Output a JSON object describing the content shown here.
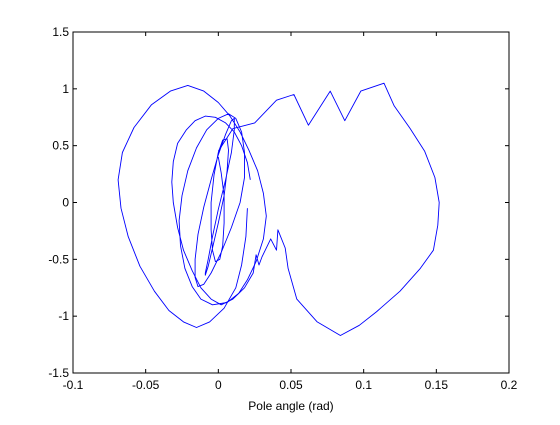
{
  "chart_data": {
    "type": "line",
    "title": "",
    "xlabel": "Pole angle (rad)",
    "ylabel": "",
    "xlim": [
      -0.1,
      0.2
    ],
    "ylim": [
      -1.5,
      1.5
    ],
    "grid": false,
    "legend": "none",
    "x_ticks": [
      -0.1,
      -0.05,
      0,
      0.05,
      0.1,
      0.15,
      0.2
    ],
    "x_tick_labels": [
      "-0.1",
      "-0.05",
      "0",
      "0.05",
      "0.1",
      "0.15",
      "0.2"
    ],
    "y_ticks": [
      -1.5,
      -1,
      -0.5,
      0,
      0.5,
      1,
      1.5
    ],
    "y_tick_labels": [
      "-1.5",
      "-1",
      "-0.5",
      "0",
      "0.5",
      "1",
      "1.5"
    ],
    "series_color": "#0000ff",
    "series": [
      {
        "name": "",
        "x": [
          0.0,
          0.005,
          0.01,
          0.025,
          0.04,
          0.052,
          0.062,
          0.077,
          0.087,
          0.098,
          0.114,
          0.121,
          0.132,
          0.142,
          0.149,
          0.152,
          0.151,
          0.148,
          0.139,
          0.125,
          0.109,
          0.097,
          0.084,
          0.068,
          0.054,
          0.048,
          0.046,
          0.041,
          0.04,
          0.036,
          0.03,
          0.028,
          0.026,
          0.024,
          0.018,
          0.01,
          0.002,
          -0.005,
          -0.012,
          -0.018,
          -0.024,
          -0.028,
          -0.031,
          -0.032,
          -0.031,
          -0.028,
          -0.022,
          -0.016,
          -0.009,
          -0.002,
          0.005,
          0.011,
          0.016,
          0.02,
          0.022
        ],
        "y": [
          0.45,
          0.55,
          0.65,
          0.7,
          0.9,
          0.95,
          0.68,
          0.98,
          0.72,
          0.98,
          1.05,
          0.85,
          0.65,
          0.45,
          0.22,
          0.0,
          -0.2,
          -0.42,
          -0.58,
          -0.78,
          -0.96,
          -1.08,
          -1.17,
          -1.05,
          -0.85,
          -0.58,
          -0.4,
          -0.24,
          -0.42,
          -0.32,
          -0.48,
          -0.55,
          -0.46,
          -0.62,
          -0.75,
          -0.85,
          -0.9,
          -0.85,
          -0.75,
          -0.6,
          -0.42,
          -0.22,
          0.0,
          0.18,
          0.36,
          0.52,
          0.64,
          0.72,
          0.76,
          0.75,
          0.7,
          0.62,
          0.5,
          0.35,
          0.2
        ]
      },
      {
        "name": "",
        "x": [
          0.02,
          0.019,
          0.016,
          0.012,
          0.004,
          -0.006,
          -0.015,
          -0.024,
          -0.034,
          -0.044,
          -0.054,
          -0.062,
          -0.067,
          -0.069,
          -0.066,
          -0.058,
          -0.046,
          -0.033,
          -0.021,
          -0.01,
          0.0,
          0.008,
          0.015,
          0.021,
          0.027,
          0.031,
          0.033,
          0.031,
          0.026,
          0.02,
          0.014,
          0.006,
          -0.004,
          -0.012,
          -0.018,
          -0.023,
          -0.026,
          -0.027,
          -0.025,
          -0.021,
          -0.015,
          -0.008,
          0.0,
          0.007,
          0.012,
          0.016,
          0.018,
          0.018,
          0.015,
          0.009,
          0.002,
          -0.005,
          -0.01,
          -0.014,
          -0.016,
          -0.016,
          -0.014,
          -0.01,
          -0.005,
          0.0,
          0.005,
          0.009,
          0.011,
          0.011,
          0.009,
          0.005,
          0.0,
          -0.004,
          -0.007,
          -0.009,
          -0.009,
          -0.007,
          -0.004,
          0.0,
          0.004,
          0.006,
          0.007,
          0.006,
          0.003,
          0.0,
          -0.003,
          -0.005,
          -0.005,
          -0.004,
          -0.002,
          0.001,
          0.003,
          0.004,
          0.004,
          0.002,
          0.0
        ],
        "y": [
          -0.05,
          -0.3,
          -0.55,
          -0.75,
          -0.93,
          -1.05,
          -1.1,
          -1.05,
          -0.95,
          -0.78,
          -0.56,
          -0.3,
          -0.05,
          0.2,
          0.44,
          0.66,
          0.86,
          0.98,
          1.03,
          0.98,
          0.88,
          0.76,
          0.62,
          0.46,
          0.28,
          0.08,
          -0.12,
          -0.32,
          -0.52,
          -0.68,
          -0.8,
          -0.88,
          -0.9,
          -0.85,
          -0.74,
          -0.58,
          -0.38,
          -0.16,
          0.06,
          0.28,
          0.48,
          0.64,
          0.74,
          0.78,
          0.74,
          0.62,
          0.44,
          0.22,
          0.0,
          -0.22,
          -0.44,
          -0.62,
          -0.72,
          -0.74,
          -0.66,
          -0.5,
          -0.28,
          -0.04,
          0.2,
          0.42,
          0.6,
          0.72,
          0.74,
          0.64,
          0.44,
          0.2,
          -0.06,
          -0.3,
          -0.5,
          -0.62,
          -0.64,
          -0.56,
          -0.4,
          -0.18,
          0.06,
          0.28,
          0.46,
          0.56,
          0.55,
          0.44,
          0.24,
          0.0,
          -0.24,
          -0.42,
          -0.52,
          -0.5,
          -0.38,
          -0.18,
          0.06,
          0.26,
          0.4
        ]
      }
    ]
  }
}
